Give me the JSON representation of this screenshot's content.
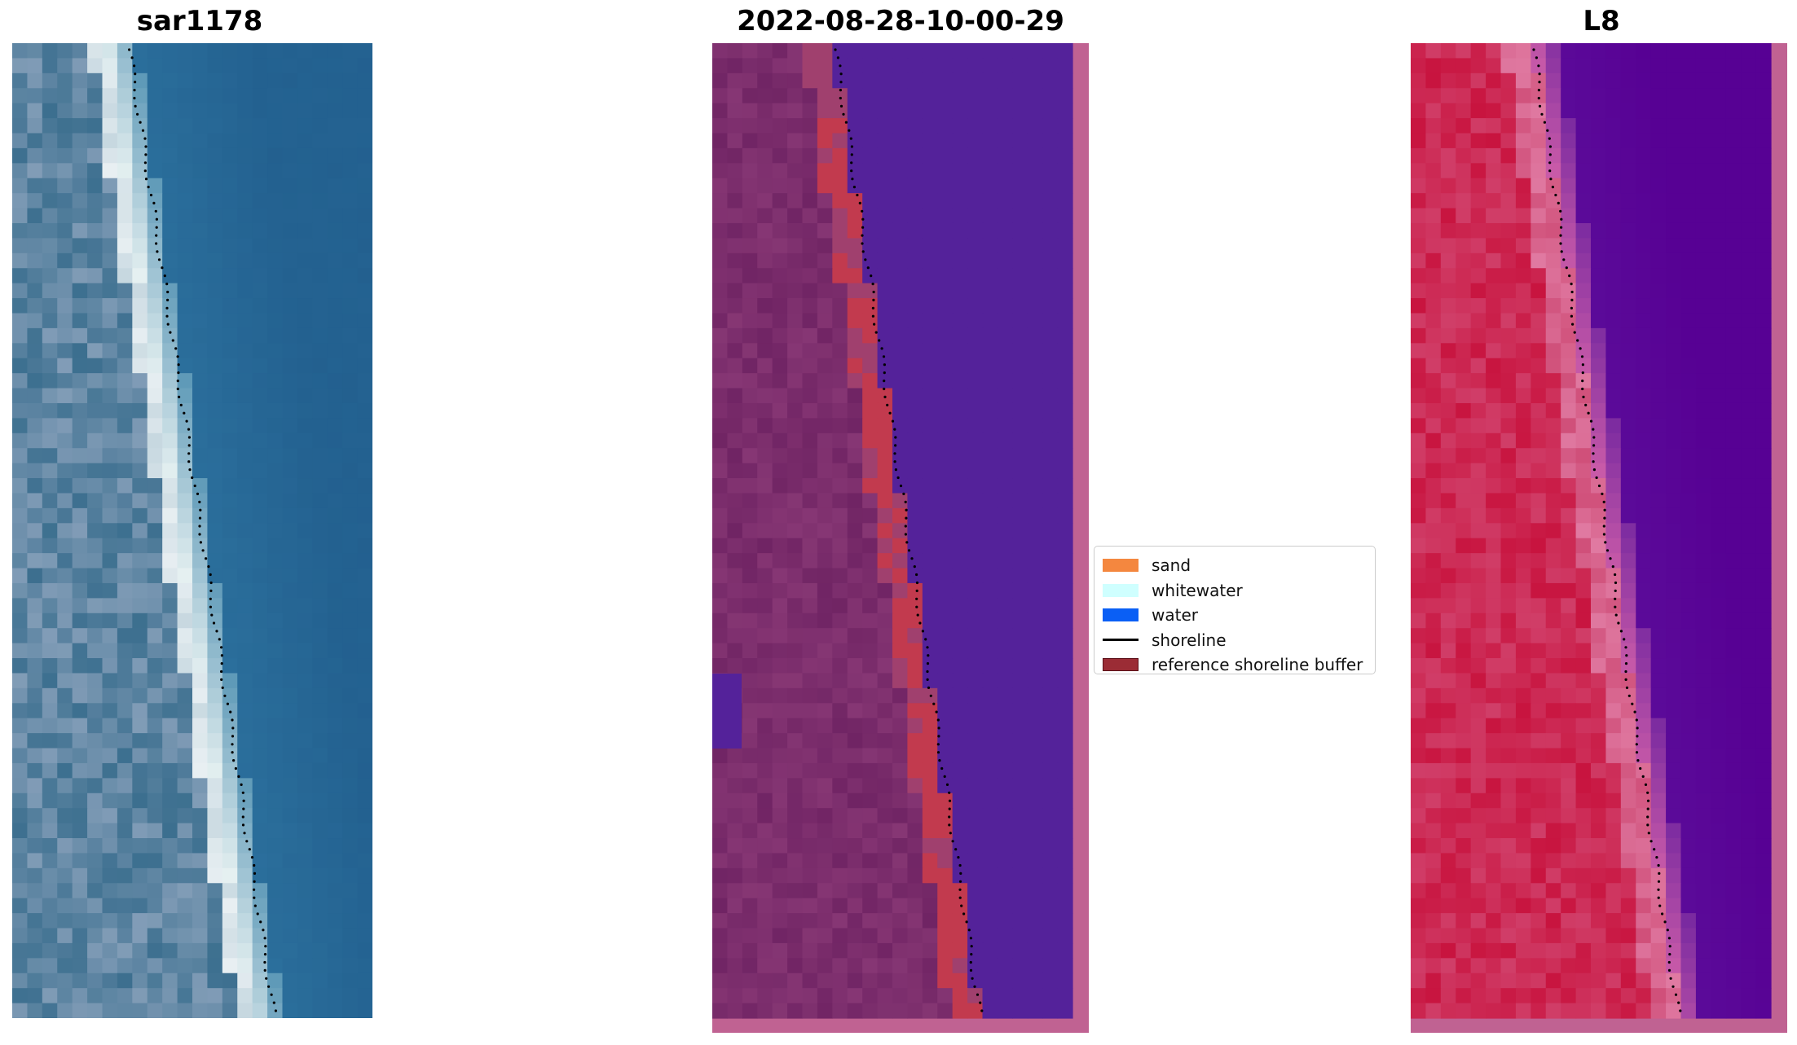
{
  "panels": {
    "left_title": "sar1178",
    "middle_title": "2022-08-28-10-00-29",
    "right_title": "L8"
  },
  "legend": {
    "items": [
      {
        "label": "sand",
        "color": "#f4873f",
        "kind": "patch"
      },
      {
        "label": "whitewater",
        "color": "#cfffff",
        "kind": "patch"
      },
      {
        "label": "water",
        "color": "#0a5ff5",
        "kind": "patch"
      },
      {
        "label": "shoreline",
        "color": "#000000",
        "kind": "line"
      },
      {
        "label": "reference shoreline buffer",
        "color": "#9b2c35",
        "kind": "patch"
      }
    ]
  },
  "colors": {
    "sar_water": "#2a6a98",
    "classified_water": "#54229a",
    "classified_land": "#702464",
    "classified_buffer": "#c23a4e",
    "mndwi_land": "#c8143f",
    "mndwi_water": "#570194",
    "frame_pink": "#c06292"
  }
}
